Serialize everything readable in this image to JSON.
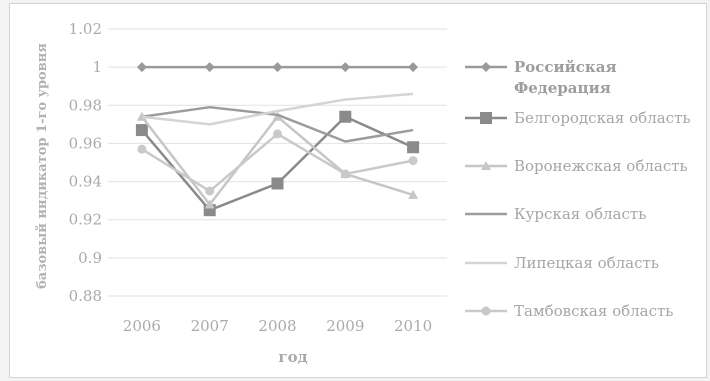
{
  "chart_data": {
    "type": "line",
    "title": "",
    "xlabel": "год",
    "ylabel": "базовый индикатор 1-го уровня",
    "categories": [
      "2006",
      "2007",
      "2008",
      "2009",
      "2010"
    ],
    "ylim": [
      0.88,
      1.02
    ],
    "yticks": [
      "0.88",
      "0.9",
      "0.92",
      "0.94",
      "0.96",
      "0.98",
      "1",
      "1.02"
    ],
    "grid": true,
    "legend_position": "right",
    "series": [
      {
        "name": "Российская Федерация",
        "values": [
          1.0,
          1.0,
          1.0,
          1.0,
          1.0
        ],
        "color": "#9a9a9a",
        "marker": "diamond",
        "bold": true
      },
      {
        "name": "Белгородская область",
        "values": [
          0.967,
          0.925,
          0.939,
          0.974,
          0.958
        ],
        "color": "#8a8a8a",
        "marker": "square"
      },
      {
        "name": "Воронежская область",
        "values": [
          0.974,
          0.928,
          0.974,
          0.944,
          0.933
        ],
        "color": "#c6c6c6",
        "marker": "triangle"
      },
      {
        "name": "Курская область",
        "values": [
          0.974,
          0.979,
          0.975,
          0.961,
          0.967
        ],
        "color": "#9c9c9c",
        "marker": "none"
      },
      {
        "name": "Липецкая область",
        "values": [
          0.974,
          0.97,
          0.977,
          0.983,
          0.986
        ],
        "color": "#d4d4d4",
        "marker": "none"
      },
      {
        "name": "Тамбовская область",
        "values": [
          0.957,
          0.935,
          0.965,
          0.944,
          0.951
        ],
        "color": "#c9c9c9",
        "marker": "circle"
      }
    ]
  }
}
